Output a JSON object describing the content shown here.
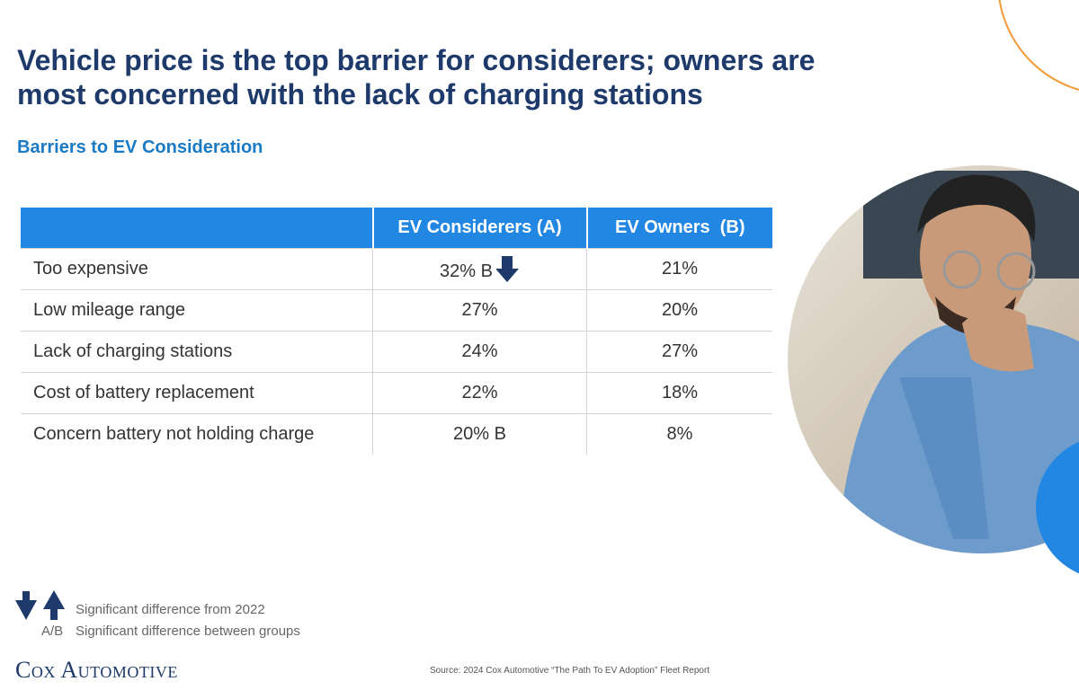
{
  "header": {
    "title": "Vehicle price is the top barrier for considerers; owners are most concerned with the lack of charging stations",
    "subtitle": "Barriers to EV Consideration"
  },
  "table": {
    "columns": [
      "EV Considerers (A)",
      "EV Owners  (B)"
    ],
    "rows": [
      [
        "Too expensive",
        "32% B",
        "21%"
      ],
      [
        "Low mileage range",
        "27%",
        "20%"
      ],
      [
        "Lack of charging stations",
        "24%",
        "27%"
      ],
      [
        "Cost of battery replacement",
        "22%",
        "18%"
      ],
      [
        "Concern battery not holding charge",
        "20% B",
        "8%"
      ]
    ]
  },
  "legend": {
    "arrows": "Significant difference from 2022",
    "groups_symbol": "A/B",
    "groups": "Significant difference between groups"
  },
  "footer": {
    "logo": "Cox Automotive",
    "source": "Source: 2024 Cox Automotive “The Path To EV Adoption” Fleet Report"
  }
}
